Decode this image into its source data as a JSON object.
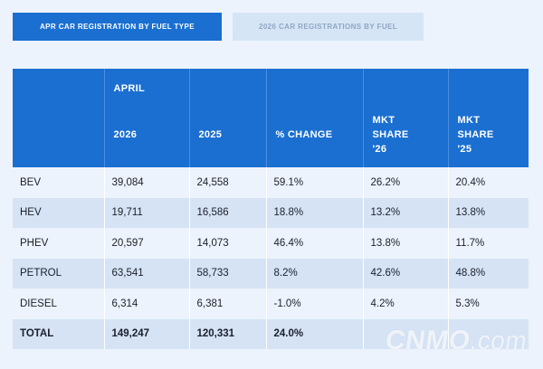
{
  "tabs": [
    {
      "label": "APR CAR REGISTRATION BY FUEL TYPE",
      "active": true
    },
    {
      "label": "2026 CAR REGISTRATIONS BY FUEL",
      "active": false
    }
  ],
  "table": {
    "header": {
      "group": "APRIL",
      "columns": [
        "",
        "2026",
        "2025",
        "% CHANGE",
        "MKT SHARE '26",
        "MKT SHARE '25"
      ],
      "mkt26_lines": [
        "MKT",
        "SHARE",
        "'26"
      ],
      "mkt25_lines": [
        "MKT",
        "SHARE",
        "'25"
      ]
    },
    "rows": [
      {
        "fuel": "BEV",
        "y2026": "39,084",
        "y2025": "24,558",
        "change": "59.1%",
        "share26": "26.2%",
        "share25": "20.4%"
      },
      {
        "fuel": "HEV",
        "y2026": "19,711",
        "y2025": "16,586",
        "change": "18.8%",
        "share26": "13.2%",
        "share25": "13.8%"
      },
      {
        "fuel": "PHEV",
        "y2026": "20,597",
        "y2025": "14,073",
        "change": "46.4%",
        "share26": "13.8%",
        "share25": "11.7%"
      },
      {
        "fuel": "PETROL",
        "y2026": "63,541",
        "y2025": "58,733",
        "change": "8.2%",
        "share26": "42.6%",
        "share25": "48.8%"
      },
      {
        "fuel": "DIESEL",
        "y2026": "6,314",
        "y2025": "6,381",
        "change": "-1.0%",
        "share26": "4.2%",
        "share25": "5.3%"
      }
    ],
    "total": {
      "fuel": "TOTAL",
      "y2026": "149,247",
      "y2025": "120,331",
      "change": "24.0%",
      "share26": "",
      "share25": ""
    }
  },
  "watermark": {
    "main": "CNMO",
    "suffix": ".com"
  },
  "colors": {
    "accent": "#1a6fd1",
    "row_dark": "#d5e3f5",
    "row_light": "#edf3fc"
  }
}
